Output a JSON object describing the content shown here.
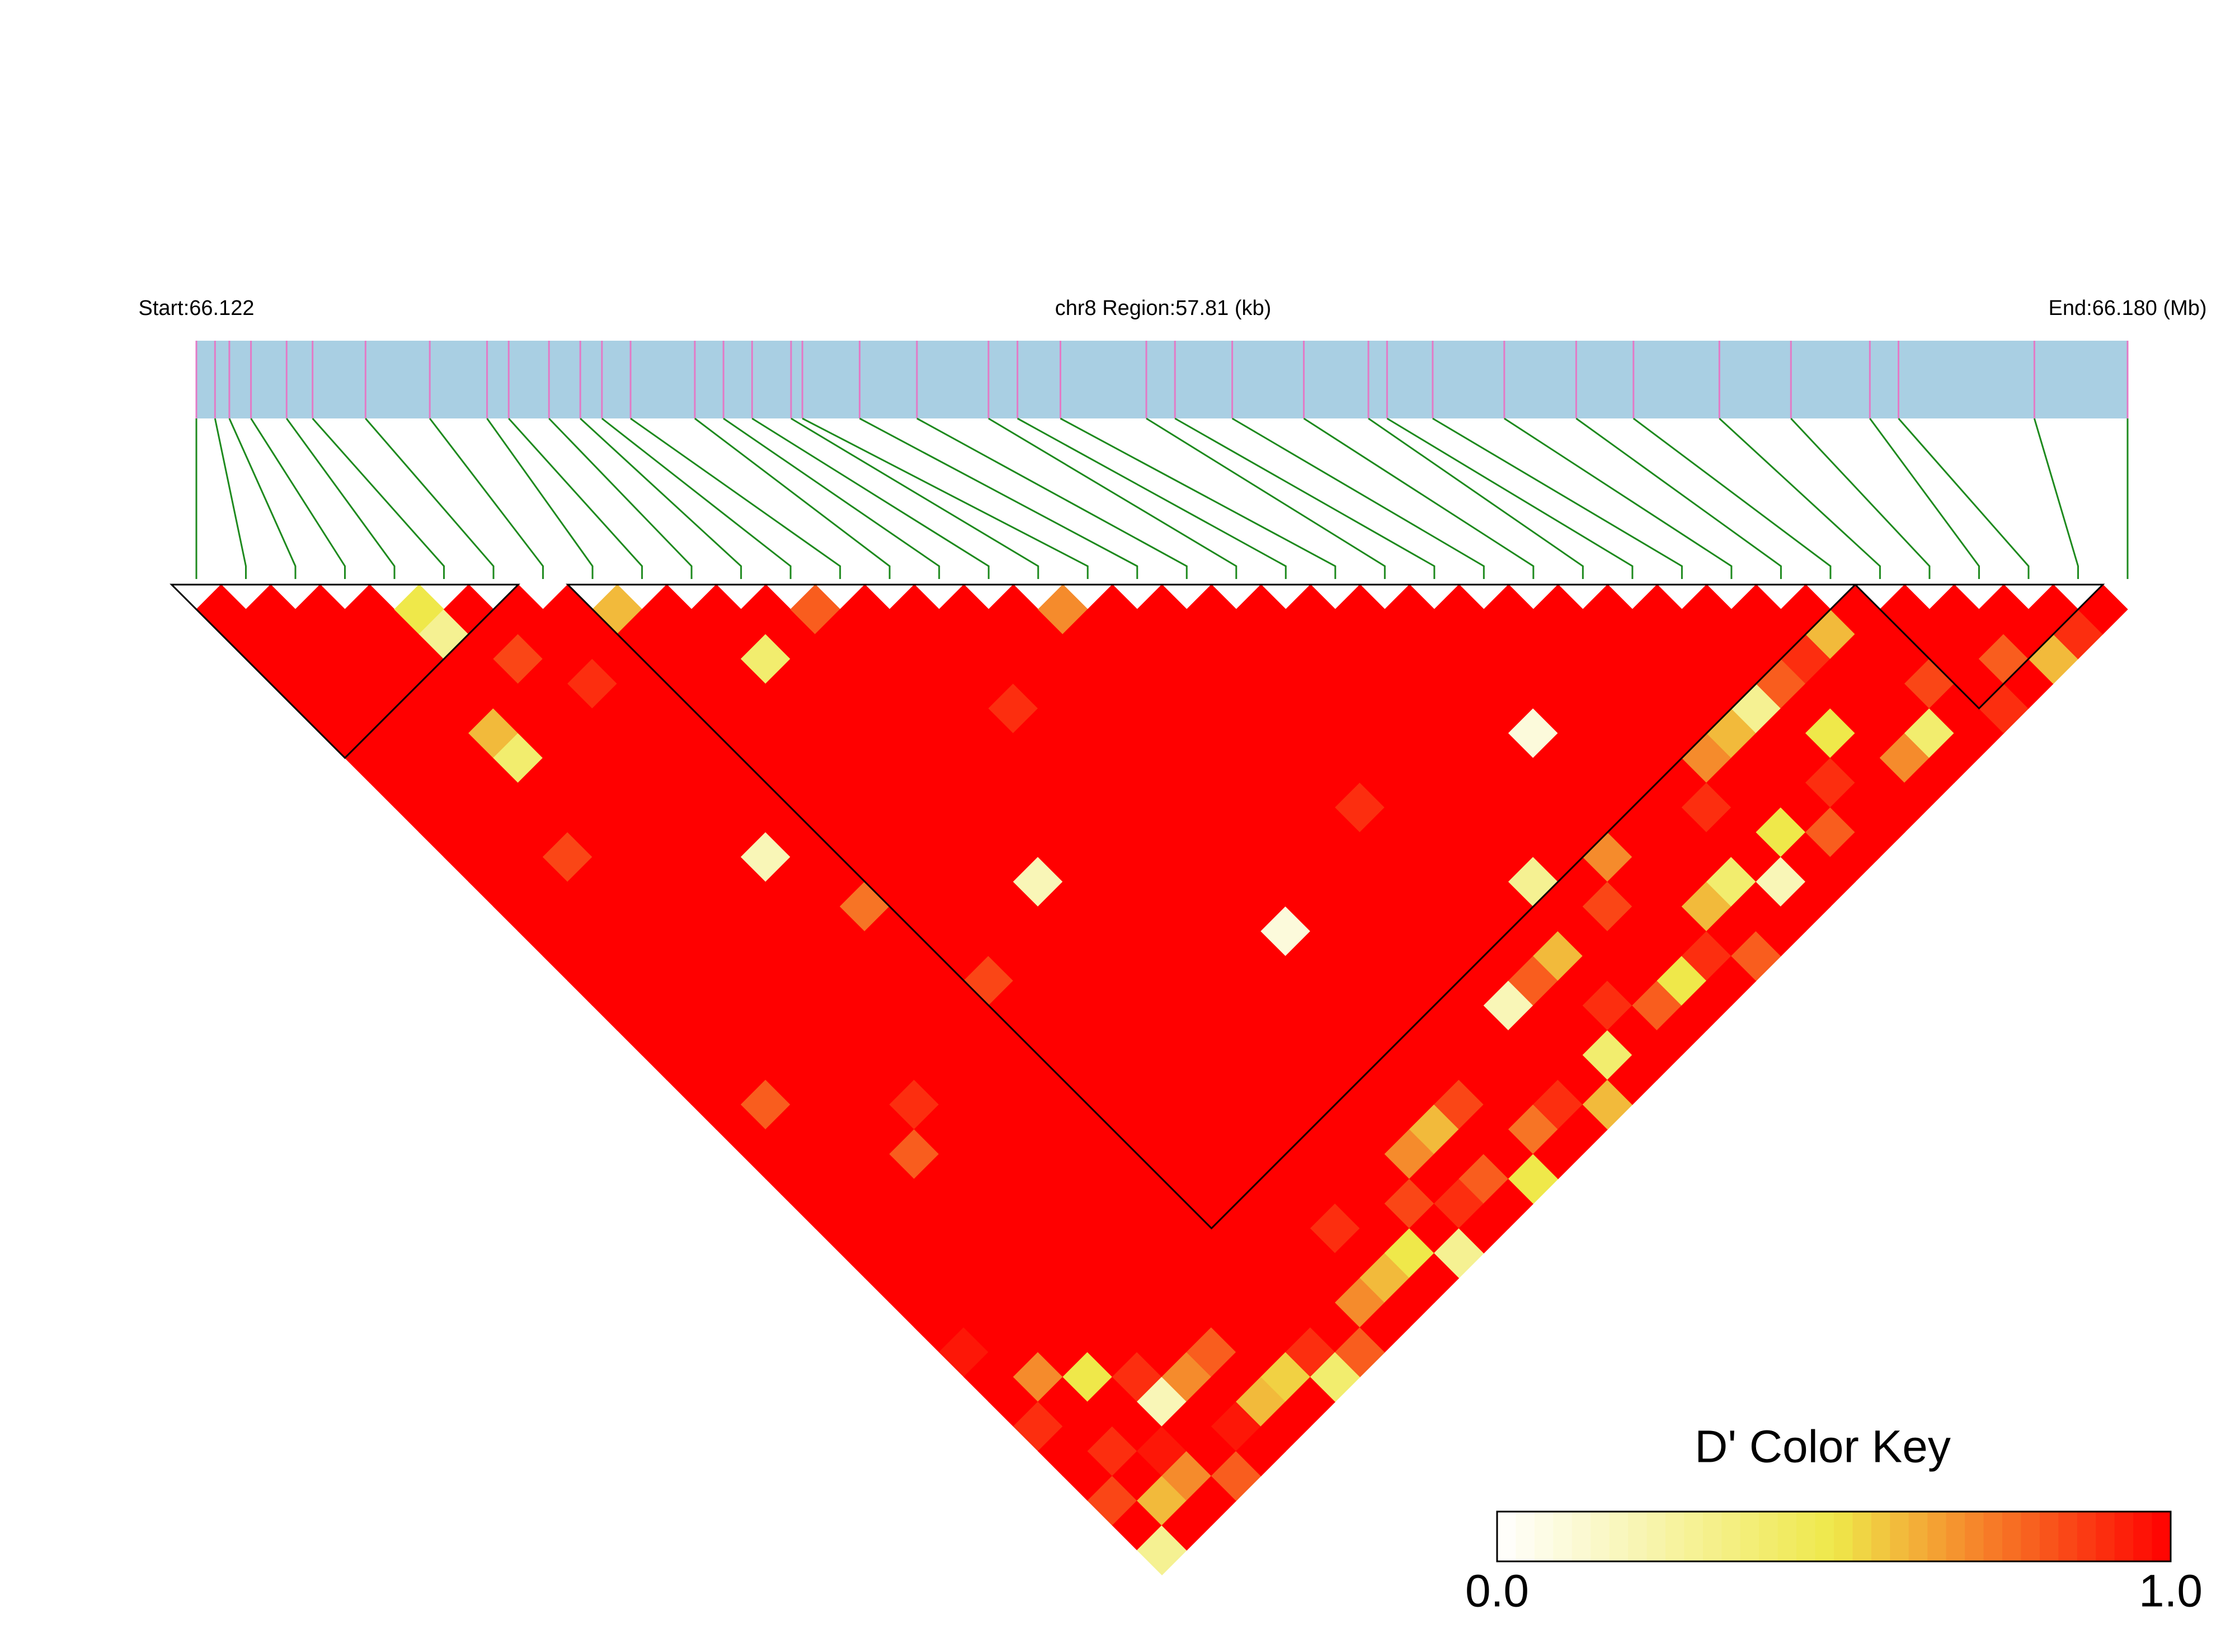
{
  "chart_data": {
    "type": "ld_heatmap",
    "title": "chr8 Region:57.81 (kb)",
    "start_label": "Start:66.122",
    "end_label": "End:66.180 (Mb)",
    "xlim": [
      66.122,
      66.18
    ],
    "x": [
      66.122,
      66.12256,
      66.12299,
      66.12364,
      66.12471,
      66.12549,
      66.12708,
      66.12901,
      66.13073,
      66.13138,
      66.13259,
      66.13353,
      66.13418,
      66.13504,
      66.13697,
      66.13783,
      66.13869,
      66.13986,
      66.1402,
      66.14192,
      66.14364,
      66.14579,
      66.14666,
      66.14795,
      66.15053,
      66.15139,
      66.15311,
      66.15526,
      66.1572,
      66.15776,
      66.15913,
      66.16128,
      66.16344,
      66.16516,
      66.16774,
      66.16989,
      66.17226,
      66.17312,
      66.1772,
      66.18
    ],
    "values": [
      [
        1,
        1,
        1,
        1,
        1,
        1,
        1,
        1,
        1,
        1,
        1,
        1,
        1,
        1,
        1,
        1,
        1,
        1,
        1,
        1,
        1,
        1,
        1,
        1,
        1,
        1,
        1,
        1,
        1,
        1,
        0.95,
        1,
        1,
        0.9,
        1,
        1,
        0.85,
        1,
        0.3
      ],
      [
        1,
        1,
        1,
        1,
        1,
        1,
        1,
        1,
        1,
        1,
        1,
        1,
        1,
        1,
        1,
        1,
        1,
        1,
        1,
        1,
        0.8,
        1,
        1,
        1,
        1,
        1,
        1,
        1,
        1,
        1,
        1,
        0.7,
        1,
        1,
        0.9,
        1,
        0.6,
        1
      ],
      [
        1,
        1,
        1,
        1,
        1,
        1,
        1,
        1,
        1,
        1,
        0.85,
        1,
        1,
        1,
        1,
        1,
        1,
        1,
        1,
        1,
        1,
        1,
        1,
        1,
        1,
        1,
        1,
        1,
        1,
        1,
        1,
        0.5,
        1,
        1,
        0.95,
        0.7,
        1
      ],
      [
        1,
        1,
        1,
        1,
        1,
        0.6,
        0.4,
        1,
        1,
        1,
        1,
        1,
        1,
        1,
        1,
        1,
        1,
        1,
        1,
        1,
        1,
        1,
        0.8,
        1,
        1,
        1,
        1,
        1,
        1,
        1,
        1,
        0.9,
        0.2,
        1,
        1,
        0.8
      ],
      [
        0.5,
        0.3,
        1,
        1,
        1,
        1,
        1,
        1,
        1,
        1,
        1,
        1,
        1,
        1,
        1,
        1,
        1,
        1,
        1,
        1,
        0.9,
        1,
        1,
        1,
        1,
        1,
        1,
        1,
        1,
        1,
        1,
        0.7,
        1,
        0.95,
        1
      ],
      [
        1,
        1,
        0.85,
        1,
        1,
        1,
        1,
        1,
        1,
        1,
        1,
        1,
        1,
        1,
        1,
        1,
        1,
        1,
        1,
        1,
        1,
        1,
        1,
        1,
        1,
        1,
        1,
        1,
        1,
        1,
        0.8,
        1,
        0.6,
        1
      ],
      [
        1,
        1,
        1,
        0.9,
        1,
        1,
        1,
        1,
        1,
        1,
        0.2,
        1,
        1,
        1,
        1,
        1,
        1,
        1,
        1,
        1,
        1,
        1,
        1,
        1,
        1,
        1,
        1,
        1,
        1,
        1,
        1,
        0.55,
        1
      ],
      [
        1,
        1,
        1,
        1,
        1,
        1,
        1,
        1,
        1,
        1,
        1,
        1,
        0.75,
        1,
        1,
        1,
        1,
        1,
        1,
        1,
        1,
        1,
        1,
        1,
        1,
        1,
        1,
        1,
        1,
        1,
        0.9,
        0.4
      ],
      [
        0.6,
        1,
        1,
        1,
        1,
        1,
        1,
        1,
        1,
        1,
        1,
        1,
        1,
        1,
        1,
        0.85,
        1,
        1,
        1,
        1,
        1,
        1,
        1,
        1,
        1,
        1,
        1,
        1,
        1,
        1,
        0.8
      ],
      [
        1,
        1,
        1,
        1,
        1,
        1,
        1,
        1,
        1,
        1,
        1,
        1,
        1,
        1,
        1,
        1,
        1,
        1,
        1,
        1,
        1,
        1,
        1,
        1,
        1,
        1,
        1,
        1,
        0.7,
        1
      ],
      [
        1,
        1,
        0.4,
        1,
        1,
        1,
        1,
        1,
        1,
        1,
        1,
        1,
        1,
        1,
        1,
        1,
        1,
        1,
        1,
        1,
        1,
        1,
        1,
        1,
        1,
        0.9,
        1,
        0.6,
        1
      ],
      [
        1,
        1,
        1,
        1,
        1,
        1,
        1,
        1,
        1,
        1,
        1,
        0.2,
        1,
        1,
        1,
        1,
        1,
        1,
        1,
        1,
        1,
        1,
        1,
        1,
        1,
        1,
        0.5,
        1
      ],
      [
        0.8,
        1,
        1,
        1,
        1,
        1,
        1,
        1,
        1,
        1,
        1,
        1,
        1,
        1,
        1,
        1,
        1,
        1,
        1,
        1,
        1,
        1,
        1,
        1,
        0.85,
        1,
        0.3
      ],
      [
        1,
        1,
        1,
        1,
        1,
        1,
        1,
        1,
        1,
        1,
        1,
        1,
        1,
        1,
        1,
        1,
        1,
        1,
        1,
        1,
        1,
        1,
        0.7,
        1,
        0.9,
        1
      ],
      [
        1,
        1,
        1,
        1,
        0.9,
        1,
        1,
        1,
        1,
        1,
        1,
        1,
        1,
        1,
        1,
        1,
        1,
        1,
        1,
        1,
        1,
        0.6,
        1,
        0.8,
        1
      ],
      [
        1,
        1,
        1,
        1,
        1,
        1,
        1,
        1,
        1,
        1,
        1,
        1,
        1,
        0.1,
        1,
        1,
        1,
        1,
        1,
        1,
        0.85,
        1,
        1,
        0.5
      ],
      [
        1,
        1,
        1,
        1,
        1,
        1,
        1,
        1,
        1,
        1,
        1,
        1,
        1,
        1,
        1,
        1,
        1,
        1,
        1,
        1,
        1,
        0.75,
        1
      ],
      [
        0.7,
        1,
        1,
        1,
        1,
        1,
        1,
        1,
        1,
        1,
        1,
        1,
        1,
        1,
        1,
        1,
        1,
        1,
        1,
        1,
        0.9,
        1
      ],
      [
        1,
        1,
        1,
        1,
        1,
        1,
        1,
        1,
        1,
        1,
        1,
        1,
        1,
        1,
        1,
        1,
        0.2,
        1,
        1,
        1,
        0.6
      ],
      [
        1,
        1,
        1,
        1,
        1,
        1,
        1,
        1,
        0.9,
        1,
        1,
        1,
        1,
        1,
        1,
        0.8,
        1,
        1,
        0.4,
        1
      ],
      [
        1,
        1,
        1,
        1,
        1,
        1,
        1,
        1,
        1,
        1,
        1,
        1,
        1,
        1,
        0.6,
        1,
        0.9,
        1,
        1
      ],
      [
        1,
        1,
        1,
        1,
        1,
        1,
        1,
        1,
        1,
        1,
        1,
        0.3,
        1,
        1,
        1,
        1,
        0.8,
        1
      ],
      [
        1,
        1,
        1,
        1,
        1,
        1,
        1,
        1,
        1,
        1,
        1,
        1,
        0.85,
        1,
        1,
        0.5,
        1
      ],
      [
        1,
        1,
        1,
        1,
        1,
        1,
        1,
        1,
        1,
        1,
        0.7,
        1,
        1,
        1,
        0.9,
        1
      ],
      [
        1,
        1,
        1,
        1,
        1,
        0.1,
        1,
        1,
        1,
        1,
        1,
        1,
        0.6,
        1,
        0.8
      ],
      [
        1,
        1,
        1,
        1,
        1,
        1,
        1,
        1,
        1,
        1,
        1,
        0.4,
        1,
        1
      ],
      [
        1,
        1,
        1,
        1,
        1,
        1,
        1,
        1,
        0.9,
        1,
        1,
        0.2,
        1
      ],
      [
        1,
        1,
        1,
        1,
        1,
        1,
        0.7,
        1,
        1,
        0.5,
        1,
        1
      ],
      [
        1,
        1,
        1,
        1,
        1,
        0.6,
        1,
        1,
        1,
        0.8,
        1
      ],
      [
        1,
        1,
        1,
        1,
        0.3,
        1,
        1,
        0.9,
        1,
        1
      ],
      [
        1,
        1,
        1,
        0.8,
        1,
        0.5,
        1,
        1,
        1
      ],
      [
        1,
        1,
        0.9,
        1,
        1,
        1,
        0.7,
        1
      ],
      [
        1,
        0.6,
        1,
        1,
        1,
        0.4,
        1
      ],
      [
        1,
        1,
        1,
        0.85,
        1,
        1
      ],
      [
        1,
        1,
        1,
        1,
        0.9
      ],
      [
        1,
        1,
        0.8,
        1
      ],
      [
        1,
        1,
        0.6
      ],
      [
        1,
        0.9
      ],
      [
        1
      ]
    ],
    "blocks": [
      [
        0,
        6
      ],
      [
        8,
        33
      ],
      [
        34,
        38
      ]
    ],
    "track_color": "#a9cfe3",
    "snp_line_color": "#e37ac6",
    "connector_color": "#1e8a1e",
    "block_color": "#000000",
    "color_key": {
      "title": "D' Color Key",
      "ticks": [
        {
          "value": 0,
          "label": "0.0"
        },
        {
          "value": 1,
          "label": "1.0"
        }
      ],
      "colors": [
        "#ffffff",
        "#efe84a",
        "#ff0000"
      ]
    }
  }
}
